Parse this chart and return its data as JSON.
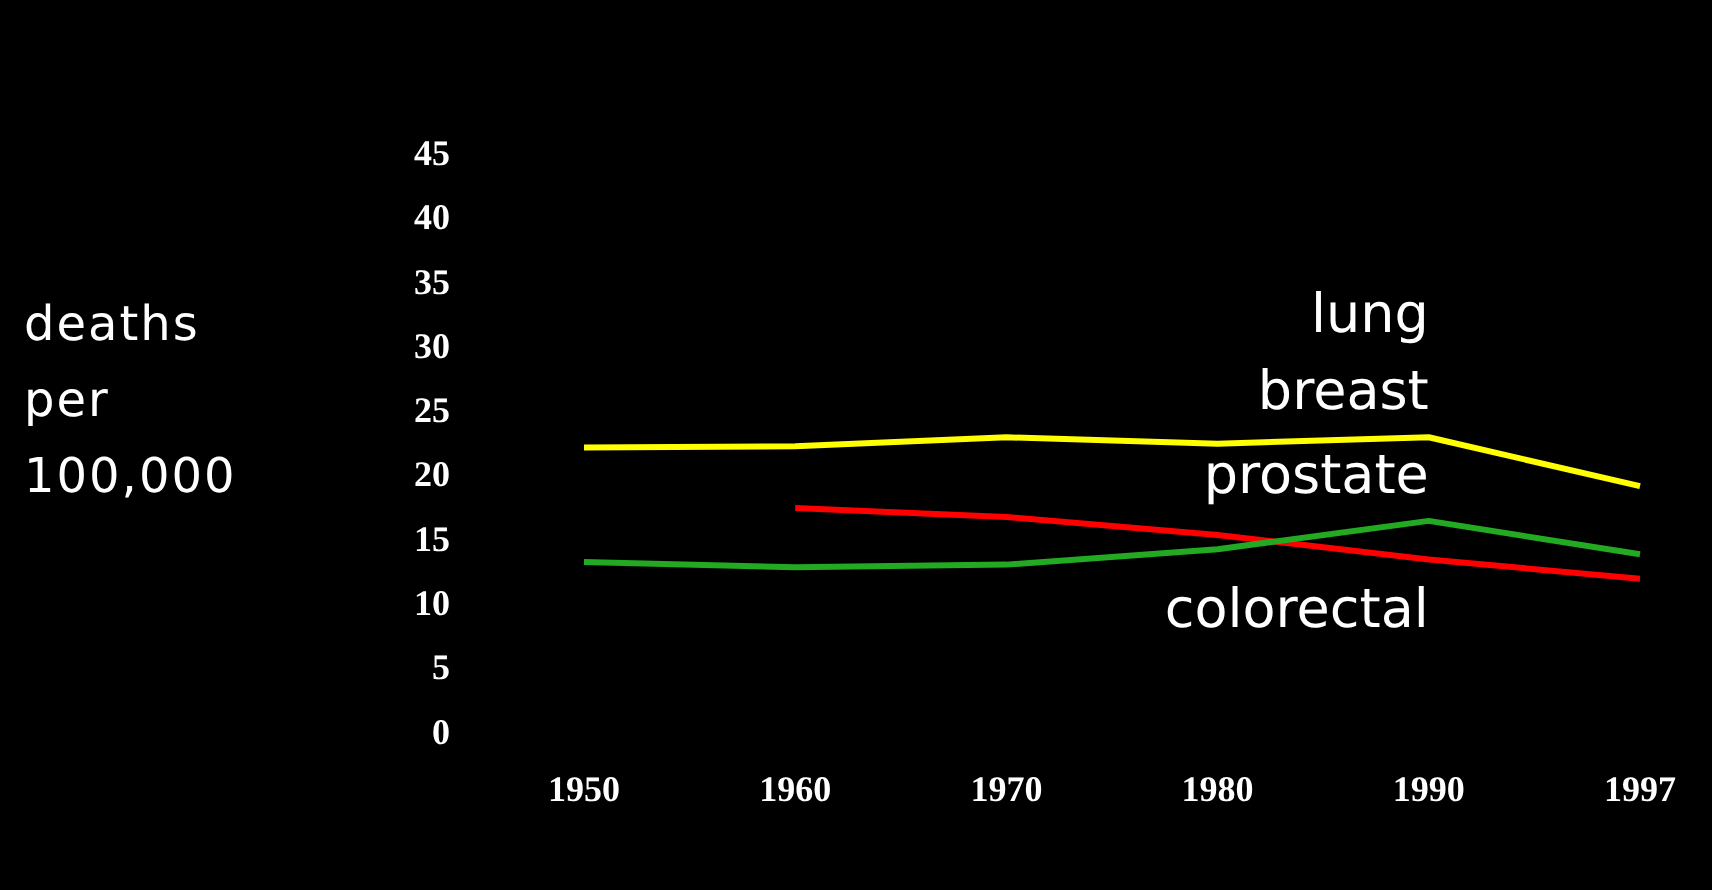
{
  "chart_data": {
    "type": "line",
    "ylabel": "deaths per 100,000",
    "categories": [
      "1950",
      "1960",
      "1970",
      "1980",
      "1990",
      "1997"
    ],
    "series": [
      {
        "name": "breast",
        "color": "#ffff00",
        "values": [
          22.3,
          22.4,
          23.1,
          22.6,
          23.1,
          19.3
        ]
      },
      {
        "name": "prostate",
        "color": "#22aa22",
        "values": [
          13.4,
          13.0,
          13.2,
          14.4,
          16.6,
          14.0
        ]
      },
      {
        "name": "colorectal",
        "color": "#ff0000",
        "values": [
          null,
          17.6,
          16.9,
          15.5,
          13.6,
          12.1
        ]
      }
    ],
    "annotations": [
      "lung"
    ],
    "ylim": [
      0,
      45
    ],
    "yticks": [
      0,
      5,
      10,
      15,
      20,
      25,
      30,
      35,
      40,
      45
    ],
    "grid": false,
    "legend": false,
    "marker": "none",
    "line_style": "solid"
  }
}
